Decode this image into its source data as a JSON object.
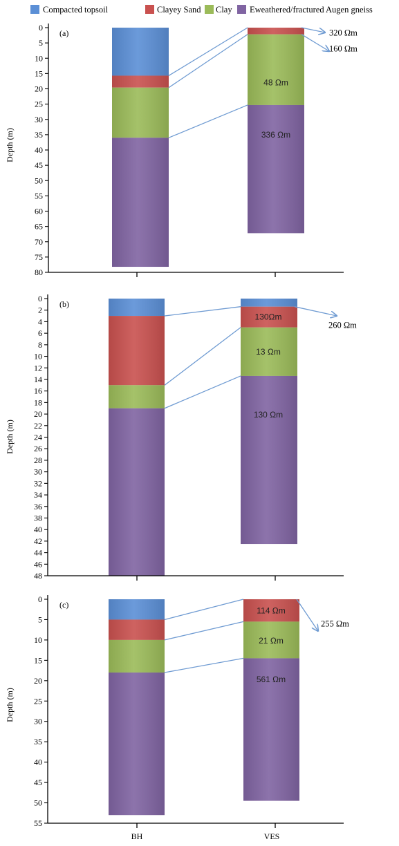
{
  "legend": [
    {
      "label": "Compacted topsoil",
      "color": "#5b8fd6"
    },
    {
      "label": "Clayey Sand",
      "color": "#c9514f"
    },
    {
      "label": "Clay",
      "color": "#9bbb59"
    },
    {
      "label": "Eweathered/fractured Augen gneiss",
      "color": "#8064a2"
    }
  ],
  "chart_data": [
    {
      "type": "bar",
      "panel_label": "(a)",
      "ylabel": "Depth (m)",
      "categories": [
        "BH",
        "VES"
      ],
      "ylim": [
        0,
        80
      ],
      "y_ticks": [
        0,
        5,
        10,
        15,
        20,
        25,
        30,
        35,
        40,
        45,
        50,
        55,
        60,
        65,
        70,
        75,
        80
      ],
      "y_inverted": true,
      "series": [
        {
          "name": "Compacted topsoil",
          "BH": [
            0,
            15.7
          ],
          "VES": null
        },
        {
          "name": "Clayey Sand",
          "BH": [
            15.7,
            19.6
          ],
          "VES": [
            0,
            2.2
          ]
        },
        {
          "name": "Clay",
          "BH": [
            19.6,
            36
          ],
          "VES": [
            2.2,
            25.3
          ]
        },
        {
          "name": "Eweathered/fractured Augen gneiss",
          "BH": [
            36,
            78.2
          ],
          "VES": [
            25.3,
            67.2
          ]
        }
      ],
      "resistivity_inside": [
        {
          "text": "48 Ωm",
          "depth": 18
        },
        {
          "text": "336 Ωm",
          "depth": 35
        }
      ],
      "resistivity_outside": [
        {
          "text": "320 Ωm",
          "depth": 1.7
        },
        {
          "text": "160 Ωm",
          "depth": 6.9
        }
      ],
      "connectors": [
        [
          15.7,
          0
        ],
        [
          19.6,
          2.2
        ],
        [
          36,
          25.3
        ]
      ]
    },
    {
      "type": "bar",
      "panel_label": "(b)",
      "ylabel": "Depth (m)",
      "categories": [
        "BH",
        "VES"
      ],
      "ylim": [
        0,
        48
      ],
      "y_ticks": [
        0,
        2,
        4,
        6,
        8,
        10,
        12,
        14,
        16,
        18,
        20,
        22,
        24,
        26,
        28,
        30,
        32,
        34,
        36,
        38,
        40,
        42,
        44,
        46,
        48
      ],
      "y_inverted": true,
      "series": [
        {
          "name": "Compacted topsoil",
          "BH": [
            0,
            3
          ],
          "VES": [
            0,
            1.4
          ]
        },
        {
          "name": "Clayey Sand",
          "BH": [
            3,
            15
          ],
          "VES": [
            1.4,
            5
          ]
        },
        {
          "name": "Clay",
          "BH": [
            15,
            19
          ],
          "VES": [
            5,
            13.4
          ]
        },
        {
          "name": "Eweathered/fractured Augen gneiss",
          "BH": [
            19,
            48
          ],
          "VES": [
            13.4,
            42.5
          ]
        }
      ],
      "resistivity_inside": [
        {
          "text": "130Ωm",
          "depth": 3.2
        },
        {
          "text": "13 Ωm",
          "depth": 9.2
        },
        {
          "text": "130 Ωm",
          "depth": 20.1
        }
      ],
      "resistivity_outside": [
        {
          "text": "260 Ωm",
          "depth": 4.6
        }
      ],
      "connectors": [
        [
          3,
          1.4
        ],
        [
          15,
          5
        ],
        [
          19,
          13.4
        ]
      ]
    },
    {
      "type": "bar",
      "panel_label": "(c)",
      "ylabel": "Depth (m)",
      "categories": [
        "BH",
        "VES"
      ],
      "ylim": [
        0,
        55
      ],
      "y_ticks": [
        0,
        5,
        10,
        15,
        20,
        25,
        30,
        35,
        40,
        45,
        50,
        55
      ],
      "y_inverted": true,
      "series": [
        {
          "name": "Compacted topsoil",
          "BH": [
            0,
            5
          ],
          "VES": null
        },
        {
          "name": "Clayey Sand",
          "BH": [
            5,
            10
          ],
          "VES": [
            0,
            5.5
          ]
        },
        {
          "name": "Clay",
          "BH": [
            10,
            18
          ],
          "VES": [
            5.5,
            14.5
          ]
        },
        {
          "name": "Eweathered/fractured Augen gneiss",
          "BH": [
            18,
            53
          ],
          "VES": [
            14.5,
            49.5
          ]
        }
      ],
      "resistivity_inside": [
        {
          "text": "114 Ωm",
          "depth": 2.8
        },
        {
          "text": "21 Ωm",
          "depth": 10.2
        },
        {
          "text": "561 Ωm",
          "depth": 19.7
        }
      ],
      "resistivity_outside": [
        {
          "text": "255 Ωm",
          "depth": 6
        }
      ],
      "connectors": [
        [
          5,
          0
        ],
        [
          10,
          5.5
        ],
        [
          18,
          14.5
        ]
      ]
    }
  ]
}
